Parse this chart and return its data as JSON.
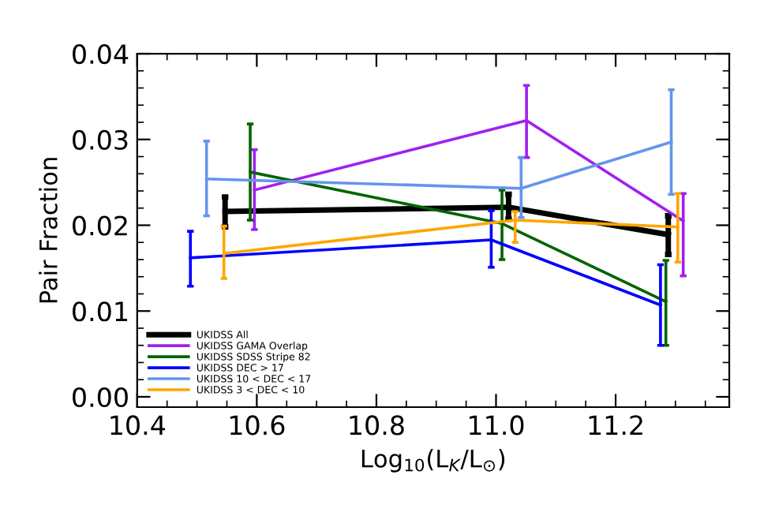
{
  "chart_data": {
    "type": "line",
    "xlabel": "Log$_{10}$(L$_{K}$/L$_{⊙}$)",
    "ylabel": "Pair Fraction",
    "xlim": [
      10.4,
      11.39
    ],
    "ylim": [
      -0.0012,
      0.04
    ],
    "xticks": [
      10.4,
      10.6,
      10.8,
      {
        "value": 11,
        "label": "11.0"
      },
      11.2
    ],
    "yticks": [
      {
        "value": 0,
        "label": "0.00"
      },
      {
        "value": 0.01,
        "label": "0.01"
      },
      {
        "value": 0.02,
        "label": "0.02"
      },
      {
        "value": 0.03,
        "label": "0.03"
      },
      {
        "value": 0.04,
        "label": "0.04"
      }
    ],
    "legend": "bottom left",
    "grid": false,
    "marker": "none",
    "line_style": "solid",
    "series": [
      {
        "name": "UKIDSS All",
        "color": "#000000",
        "x": [
          10.547,
          11.021,
          11.288
        ],
        "values": [
          0.0216,
          0.0221,
          0.0189
        ],
        "errors": [
          [
            0.0198,
            0.0233
          ],
          [
            0.0207,
            0.0236
          ],
          [
            0.0166,
            0.0211
          ]
        ]
      },
      {
        "name": "UKIDSS GAMA Overlap",
        "color": "#a020f0",
        "x": [
          10.596,
          11.051,
          11.313
        ],
        "values": [
          0.0241,
          0.0322,
          0.0205
        ],
        "errors": [
          [
            0.0195,
            0.0288
          ],
          [
            0.0279,
            0.0363
          ],
          [
            0.0141,
            0.0237
          ]
        ]
      },
      {
        "name": "UKIDSS SDSS Stripe 82",
        "color": "#006400",
        "x": [
          10.589,
          11.01,
          11.284
        ],
        "values": [
          0.0262,
          0.0202,
          0.0111
        ],
        "errors": [
          [
            0.0206,
            0.0318
          ],
          [
            0.016,
            0.0241
          ],
          [
            0.006,
            0.0159
          ]
        ]
      },
      {
        "name": "UKIDSS DEC > 17",
        "color": "#0000ff",
        "x": [
          10.489,
          10.992,
          11.275
        ],
        "values": [
          0.0162,
          0.0183,
          0.0107
        ],
        "errors": [
          [
            0.0129,
            0.0193
          ],
          [
            0.0151,
            0.0217
          ],
          [
            0.006,
            0.0154
          ]
        ]
      },
      {
        "name": "UKIDSS 10 < DEC < 17",
        "color": "#6495ed",
        "x": [
          10.516,
          11.042,
          11.293
        ],
        "values": [
          0.0254,
          0.0243,
          0.0297
        ],
        "errors": [
          [
            0.0211,
            0.0298
          ],
          [
            0.0209,
            0.0279
          ],
          [
            0.0236,
            0.0358
          ]
        ]
      },
      {
        "name": "UKIDSS 3 < DEC < 10",
        "color": "#ffa500",
        "x": [
          10.545,
          11.032,
          11.304
        ],
        "values": [
          0.0167,
          0.0206,
          0.0198
        ],
        "errors": [
          [
            0.0138,
            0.0199
          ],
          [
            0.018,
            0.0216
          ],
          [
            0.0157,
            0.0237
          ]
        ]
      }
    ]
  }
}
